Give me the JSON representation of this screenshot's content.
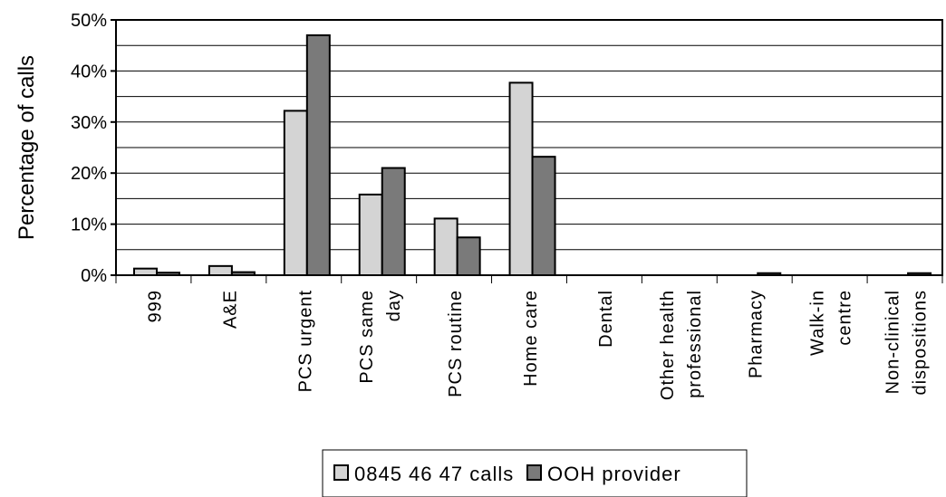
{
  "chart_data": {
    "type": "bar",
    "ylabel": "Percentage of calls",
    "xlabel": "",
    "ylim": [
      0,
      50
    ],
    "yticks": [
      "0%",
      "10%",
      "20%",
      "30%",
      "40%",
      "50%"
    ],
    "grid": true,
    "legend_position": "bottom",
    "categories": [
      [
        "999"
      ],
      [
        "A&E"
      ],
      [
        "PCS urgent"
      ],
      [
        "PCS same",
        "day"
      ],
      [
        "PCS routine"
      ],
      [
        "Home care"
      ],
      [
        "Dental"
      ],
      [
        "Other health",
        "professional"
      ],
      [
        "Pharmacy"
      ],
      [
        "Walk-in",
        "centre"
      ],
      [
        "Non-clinical",
        "dispositions"
      ]
    ],
    "series": [
      {
        "name": "0845 46 47 calls",
        "color": "#d4d4d4",
        "values": [
          1.3,
          1.8,
          32.2,
          15.8,
          11.1,
          37.7,
          0,
          0,
          0,
          0,
          0
        ]
      },
      {
        "name": "OOH provider",
        "color": "#7a7a7a",
        "values": [
          0.5,
          0.6,
          47.0,
          21.0,
          7.4,
          23.2,
          0,
          0,
          0.4,
          0,
          0.4
        ]
      }
    ]
  }
}
